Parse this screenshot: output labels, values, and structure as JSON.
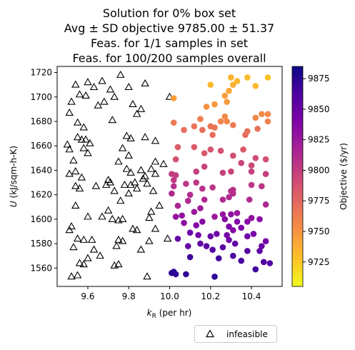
{
  "chart_data": {
    "type": "scatter",
    "title": [
      "Solution for 0% box set",
      "Avg ± SD objective 9785.00 ± 51.37",
      "Feas. for 1/1 samples in set",
      "Feas. for 100/200 samples overall"
    ],
    "xlabel": "k_R (per hr)",
    "ylabel": "U (kJ/sqm-h-K)",
    "xlim": [
      9.45,
      10.55
    ],
    "ylim": [
      1545,
      1725
    ],
    "x_ticks": [
      9.6,
      9.8,
      10.0,
      10.2,
      10.4
    ],
    "x_tick_labels": [
      "9.6",
      "9.8",
      "10.0",
      "10.2",
      "10.4"
    ],
    "y_ticks": [
      1560,
      1580,
      1600,
      1620,
      1640,
      1660,
      1680,
      1700,
      1720
    ],
    "y_tick_labels": [
      "1560",
      "1580",
      "1600",
      "1620",
      "1640",
      "1660",
      "1680",
      "1700",
      "1720"
    ],
    "colorbar": {
      "label": "Objective ($/yr)",
      "range": [
        9705,
        9885
      ],
      "ticks": [
        9725,
        9750,
        9775,
        9800,
        9825,
        9850,
        9875
      ],
      "tick_labels": [
        "9725",
        "9750",
        "9775",
        "9800",
        "9825",
        "9850",
        "9875"
      ],
      "colormap": "plasma"
    },
    "legend": {
      "position": "below-right",
      "entries": [
        "infeasible"
      ]
    },
    "series": [
      {
        "name": "infeasible",
        "marker": "open-triangle",
        "points": [
          [
            9.52,
            1553
          ],
          [
            9.55,
            1554
          ],
          [
            9.56,
            1564
          ],
          [
            9.58,
            1563
          ],
          [
            9.6,
            1568
          ],
          [
            9.63,
            1575
          ],
          [
            9.66,
            1570
          ],
          [
            9.53,
            1577
          ],
          [
            9.51,
            1591
          ],
          [
            9.52,
            1594
          ],
          [
            9.55,
            1584
          ],
          [
            9.58,
            1583
          ],
          [
            9.62,
            1583
          ],
          [
            9.54,
            1611
          ],
          [
            9.6,
            1602
          ],
          [
            9.67,
            1602
          ],
          [
            9.7,
            1607
          ],
          [
            9.64,
            1627
          ],
          [
            9.54,
            1627
          ],
          [
            9.56,
            1625
          ],
          [
            9.51,
            1637
          ],
          [
            9.54,
            1639
          ],
          [
            9.57,
            1634
          ],
          [
            9.53,
            1648
          ],
          [
            9.6,
            1654
          ],
          [
            9.51,
            1657
          ],
          [
            9.5,
            1661
          ],
          [
            9.57,
            1665
          ],
          [
            9.55,
            1667
          ],
          [
            9.59,
            1665
          ],
          [
            9.58,
            1658
          ],
          [
            9.61,
            1662
          ],
          [
            9.55,
            1679
          ],
          [
            9.58,
            1675
          ],
          [
            9.51,
            1687
          ],
          [
            9.52,
            1696
          ],
          [
            9.56,
            1702
          ],
          [
            9.59,
            1701
          ],
          [
            9.54,
            1710
          ],
          [
            9.6,
            1712
          ],
          [
            9.63,
            1708
          ],
          [
            9.65,
            1693
          ],
          [
            9.68,
            1696
          ],
          [
            9.71,
            1706
          ],
          [
            9.73,
            1700
          ],
          [
            9.67,
            1713
          ],
          [
            9.76,
            1718
          ],
          [
            9.88,
            1711
          ],
          [
            9.8,
            1708
          ],
          [
            9.82,
            1694
          ],
          [
            9.86,
            1690
          ],
          [
            9.84,
            1686
          ],
          [
            9.72,
            1681
          ],
          [
            9.79,
            1668
          ],
          [
            9.81,
            1666
          ],
          [
            9.77,
            1658
          ],
          [
            9.8,
            1652
          ],
          [
            9.75,
            1647
          ],
          [
            9.79,
            1641
          ],
          [
            9.81,
            1638
          ],
          [
            9.78,
            1628
          ],
          [
            9.81,
            1628
          ],
          [
            9.8,
            1621
          ],
          [
            9.83,
            1630
          ],
          [
            9.84,
            1625
          ],
          [
            9.87,
            1633
          ],
          [
            9.88,
            1635
          ],
          [
            9.86,
            1640
          ],
          [
            9.91,
            1641
          ],
          [
            9.93,
            1637
          ],
          [
            9.92,
            1623
          ],
          [
            9.89,
            1629
          ],
          [
            9.95,
            1611
          ],
          [
            9.91,
            1606
          ],
          [
            9.93,
            1592
          ],
          [
            9.84,
            1591
          ],
          [
            9.82,
            1592
          ],
          [
            9.75,
            1599
          ],
          [
            9.72,
            1600
          ],
          [
            9.69,
            1628
          ],
          [
            9.71,
            1630
          ],
          [
            9.73,
            1623
          ],
          [
            9.76,
            1615
          ],
          [
            9.75,
            1583
          ],
          [
            9.74,
            1578
          ],
          [
            9.77,
            1582
          ],
          [
            9.73,
            1562
          ],
          [
            9.75,
            1563
          ],
          [
            9.86,
            1575
          ],
          [
            9.89,
            1553
          ],
          [
            9.9,
            1582
          ],
          [
            9.99,
            1584
          ],
          [
            10.0,
            1700
          ],
          [
            9.93,
            1664
          ],
          [
            9.88,
            1667
          ],
          [
            9.77,
            1600
          ],
          [
            9.93,
            1647
          ],
          [
            9.9,
            1601
          ],
          [
            9.97,
            1645
          ],
          [
            9.7,
            1632
          ]
        ]
      },
      {
        "name": "feasible",
        "marker": "filled-circle",
        "points": [
          [
            10.01,
            1556,
            9875
          ],
          [
            10.02,
            1557,
            9874
          ],
          [
            10.03,
            1555,
            9872
          ],
          [
            10.08,
            1555,
            9871
          ],
          [
            10.22,
            1553,
            9873
          ],
          [
            10.1,
            1569,
            9868
          ],
          [
            10.24,
            1568,
            9866
          ],
          [
            10.31,
            1570,
            9862
          ],
          [
            10.35,
            1566,
            9864
          ],
          [
            10.42,
            1559,
            9866
          ],
          [
            10.46,
            1565,
            9862
          ],
          [
            10.49,
            1564,
            9860
          ],
          [
            10.38,
            1574,
            9859
          ],
          [
            10.44,
            1574,
            9855
          ],
          [
            10.45,
            1578,
            9850
          ],
          [
            10.26,
            1577,
            9855
          ],
          [
            10.21,
            1575,
            9857
          ],
          [
            10.18,
            1578,
            9855
          ],
          [
            10.15,
            1580,
            9853
          ],
          [
            10.09,
            1578,
            9852
          ],
          [
            10.04,
            1584,
            9851
          ],
          [
            10.1,
            1589,
            9848
          ],
          [
            10.14,
            1587,
            9846
          ],
          [
            10.2,
            1586,
            9849
          ],
          [
            10.23,
            1588,
            9847
          ],
          [
            10.29,
            1583,
            9846
          ],
          [
            10.32,
            1580,
            9852
          ],
          [
            10.28,
            1587,
            9844
          ],
          [
            10.38,
            1586,
            9847
          ],
          [
            10.41,
            1588,
            9843
          ],
          [
            10.47,
            1582,
            9845
          ],
          [
            10.31,
            1591,
            9837
          ],
          [
            10.35,
            1593,
            9840
          ],
          [
            10.29,
            1594,
            9840
          ],
          [
            10.27,
            1600,
            9835
          ],
          [
            10.3,
            1604,
            9832
          ],
          [
            10.33,
            1598,
            9836
          ],
          [
            10.38,
            1598,
            9834
          ],
          [
            10.44,
            1600,
            9834
          ],
          [
            10.4,
            1601,
            9830
          ],
          [
            10.16,
            1598,
            9834
          ],
          [
            10.13,
            1595,
            9836
          ],
          [
            10.06,
            1603,
            9831
          ],
          [
            10.07,
            1597,
            9831
          ],
          [
            10.03,
            1602,
            9827
          ],
          [
            10.12,
            1606,
            9825
          ],
          [
            10.15,
            1609,
            9822
          ],
          [
            10.22,
            1602,
            9823
          ],
          [
            10.26,
            1604,
            9827
          ],
          [
            10.33,
            1605,
            9825
          ],
          [
            10.47,
            1612,
            9815
          ],
          [
            10.39,
            1616,
            9812
          ],
          [
            10.31,
            1621,
            9810
          ],
          [
            10.29,
            1618,
            9812
          ],
          [
            10.26,
            1616,
            9813
          ],
          [
            10.17,
            1616,
            9814
          ],
          [
            10.09,
            1615,
            9813
          ],
          [
            10.1,
            1620,
            9811
          ],
          [
            10.04,
            1611,
            9816
          ],
          [
            10.01,
            1621,
            9813
          ],
          [
            10.02,
            1627,
            9808
          ],
          [
            10.16,
            1625,
            9808
          ],
          [
            10.21,
            1626,
            9806
          ],
          [
            10.08,
            1629,
            9805
          ],
          [
            10.13,
            1630,
            9804
          ],
          [
            10.02,
            1632,
            9803
          ],
          [
            10.01,
            1637,
            9800
          ],
          [
            10.03,
            1636,
            9801
          ],
          [
            10.13,
            1639,
            9798
          ],
          [
            10.17,
            1643,
            9796
          ],
          [
            10.26,
            1638,
            9799
          ],
          [
            10.3,
            1639,
            9797
          ],
          [
            10.3,
            1623,
            9809
          ],
          [
            10.31,
            1624,
            9808
          ],
          [
            10.4,
            1628,
            9805
          ],
          [
            10.45,
            1627,
            9806
          ],
          [
            10.4,
            1639,
            9799
          ],
          [
            10.47,
            1637,
            9800
          ],
          [
            10.4,
            1644,
            9794
          ],
          [
            10.35,
            1646,
            9796
          ],
          [
            10.42,
            1650,
            9790
          ],
          [
            10.47,
            1649,
            9789
          ],
          [
            10.31,
            1652,
            9789
          ],
          [
            10.25,
            1656,
            9787
          ],
          [
            10.2,
            1657,
            9785
          ],
          [
            10.12,
            1659,
            9782
          ],
          [
            10.04,
            1659,
            9781
          ],
          [
            10.03,
            1649,
            9788
          ],
          [
            10.17,
            1654,
            9784
          ],
          [
            10.36,
            1657,
            9783
          ],
          [
            10.37,
            1669,
            9773
          ],
          [
            10.38,
            1672,
            9770
          ],
          [
            10.43,
            1674,
            9769
          ],
          [
            10.21,
            1669,
            9771
          ],
          [
            10.16,
            1673,
            9770
          ],
          [
            10.12,
            1676,
            9768
          ],
          [
            10.07,
            1673,
            9770
          ],
          [
            10.02,
            1679,
            9765
          ],
          [
            10.2,
            1676,
            9768
          ],
          [
            10.22,
            1675,
            9767
          ],
          [
            10.15,
            1682,
            9762
          ],
          [
            10.18,
            1692,
            9752
          ],
          [
            10.22,
            1694,
            9748
          ],
          [
            10.28,
            1696,
            9747
          ],
          [
            10.27,
            1701,
            9745
          ],
          [
            10.29,
            1705,
            9741
          ],
          [
            10.31,
            1710,
            9737
          ],
          [
            10.3,
            1716,
            9735
          ],
          [
            10.33,
            1713,
            9733
          ],
          [
            10.38,
            1716,
            9731
          ],
          [
            10.42,
            1709,
            9733
          ],
          [
            10.48,
            1716,
            9728
          ],
          [
            10.45,
            1686,
            9756
          ],
          [
            10.48,
            1686,
            9756
          ],
          [
            10.42,
            1683,
            9758
          ],
          [
            10.48,
            1680,
            9759
          ],
          [
            10.27,
            1684,
            9756
          ],
          [
            10.28,
            1680,
            9757
          ],
          [
            10.2,
            1710,
            9733
          ],
          [
            10.02,
            1699,
            9745
          ],
          [
            10.25,
            1680,
            9760
          ],
          [
            10.31,
            1677,
            9764
          ]
        ]
      }
    ]
  }
}
